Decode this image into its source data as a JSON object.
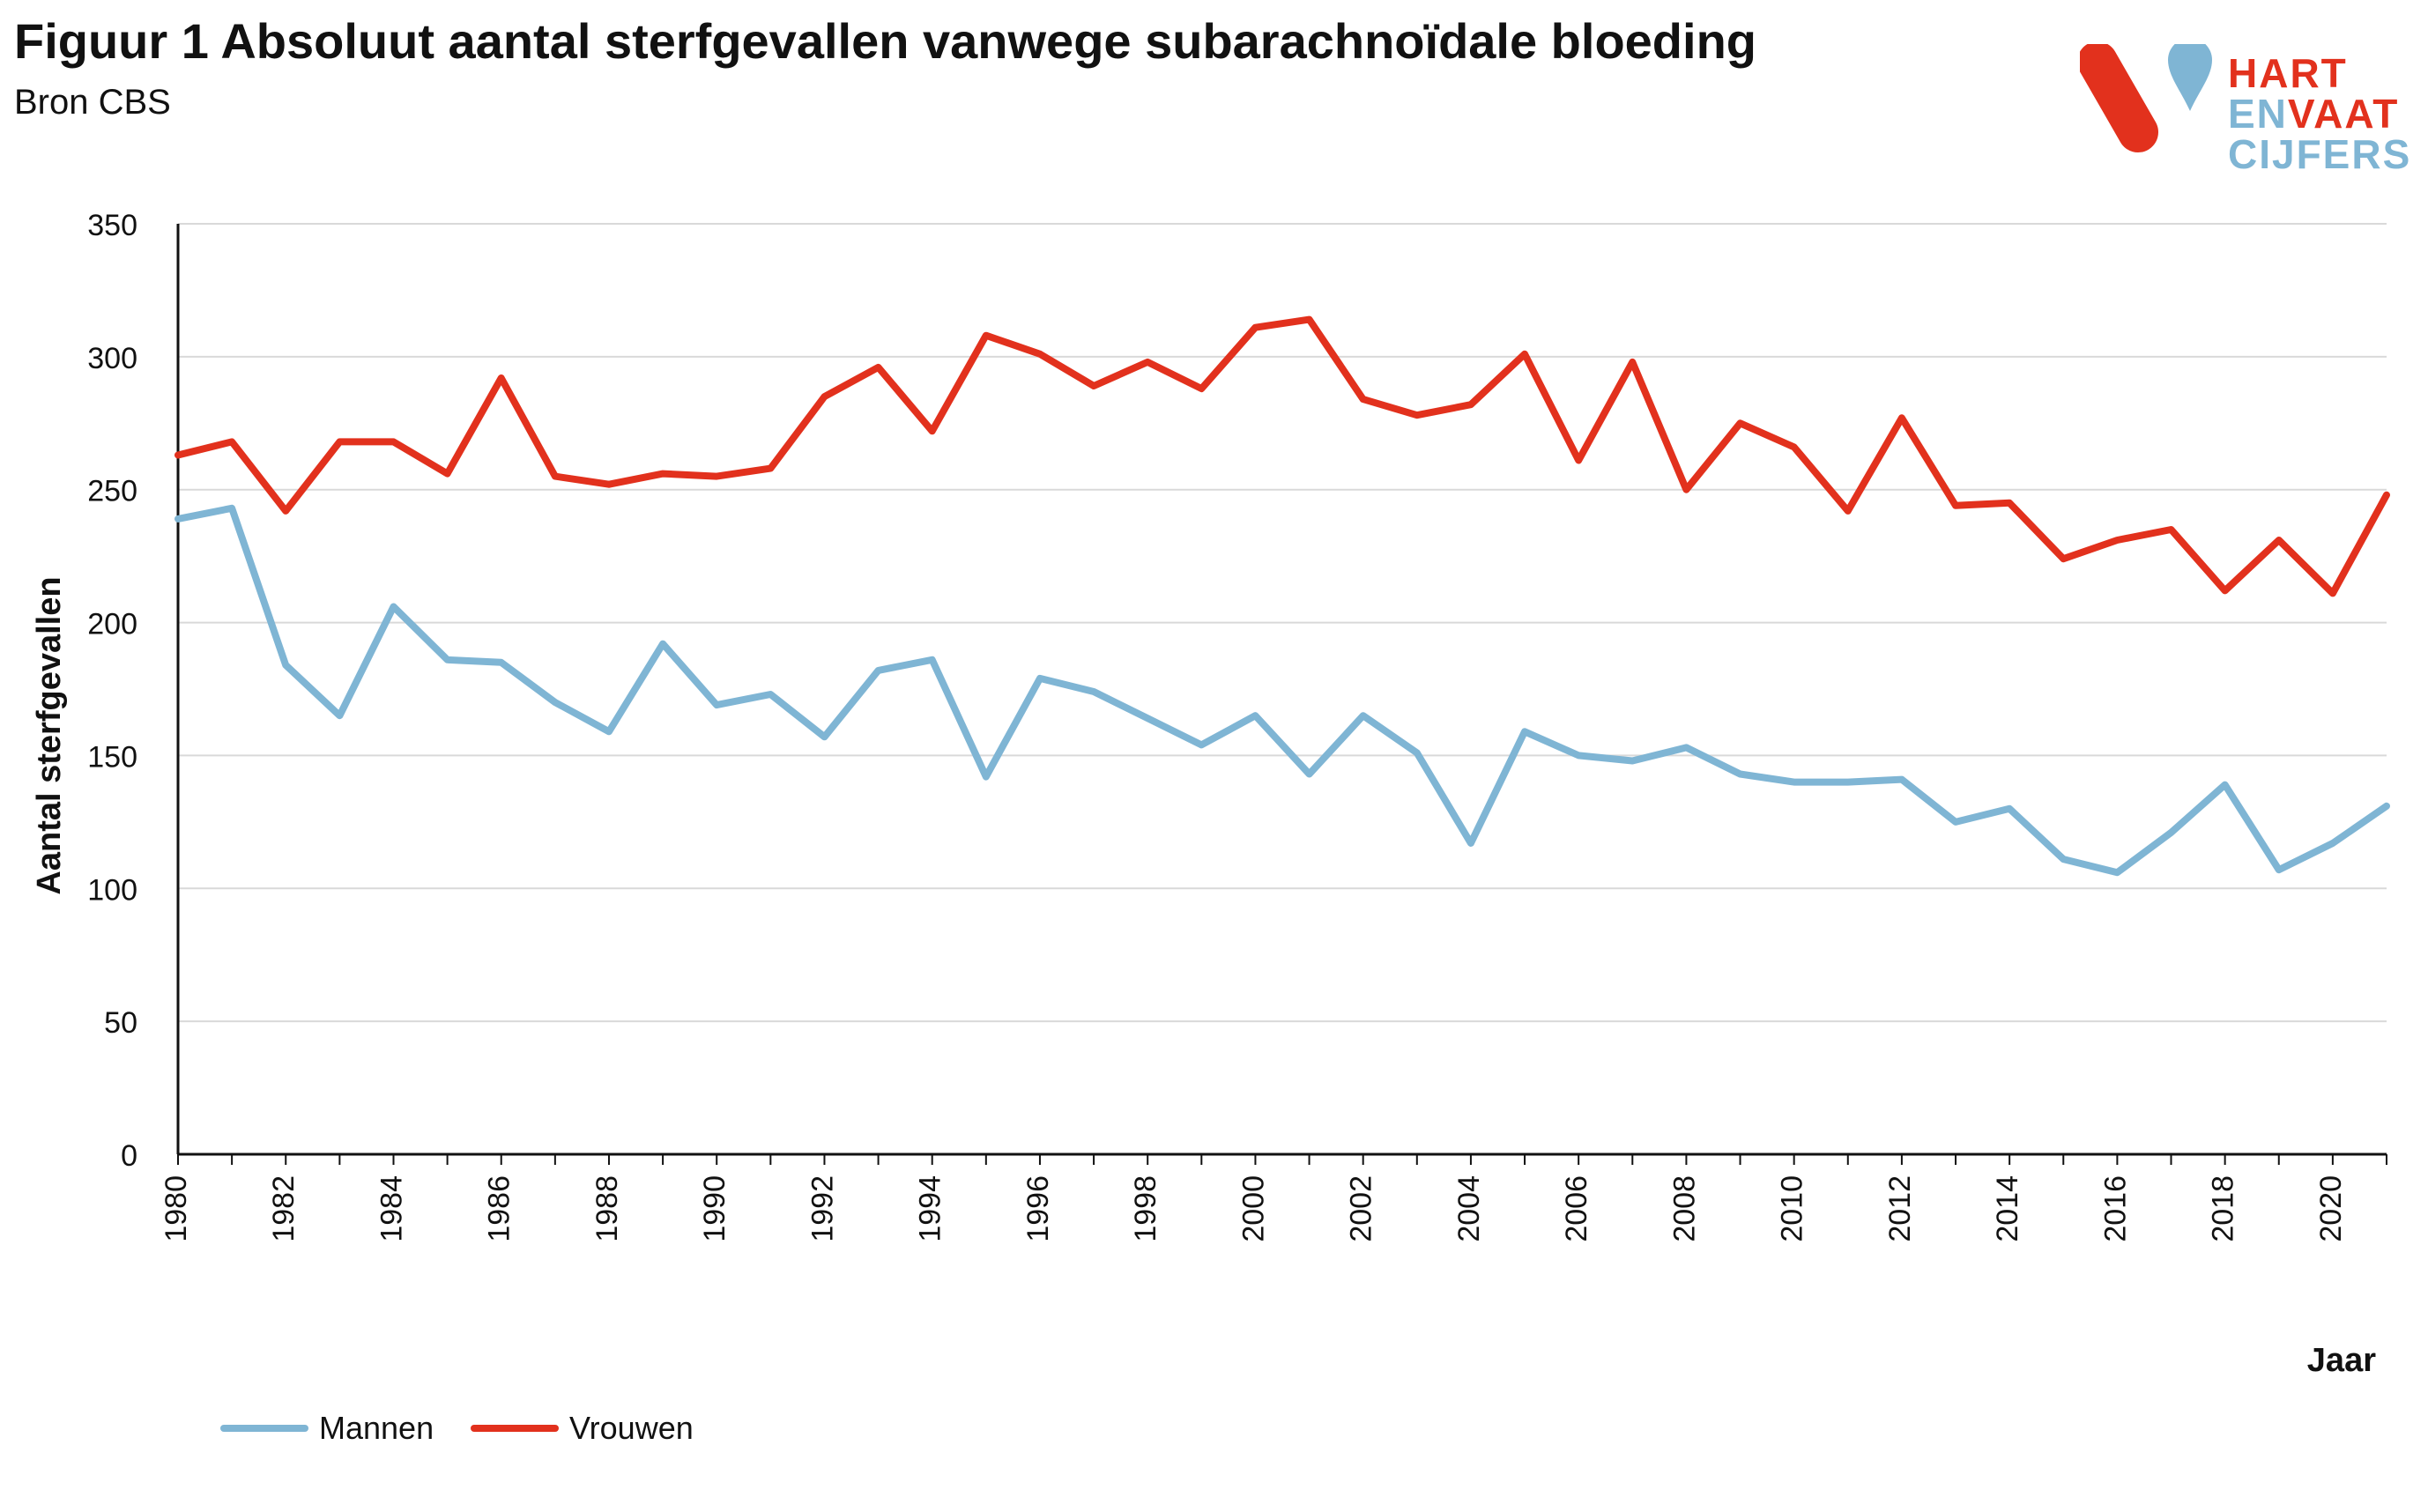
{
  "header": {
    "title": "Figuur 1 Absoluut aantal sterfgevallen vanwege subarachnoïdale bloeding",
    "subtitle": "Bron CBS"
  },
  "logo": {
    "line1a": "HART",
    "line2a": "EN",
    "line2b": "VAAT",
    "line3a": "CIJFERS",
    "red": "#e2311d",
    "blue": "#7fb5d4"
  },
  "chart_data": {
    "type": "line",
    "title": "Figuur 1 Absoluut aantal sterfgevallen vanwege subarachnoïdale bloeding",
    "xlabel": "Jaar",
    "ylabel": "Aantal sterfgevallen",
    "ylim": [
      0,
      350
    ],
    "yticks": [
      0,
      50,
      100,
      150,
      200,
      250,
      300,
      350
    ],
    "xtick_labels": [
      "1980",
      "1982",
      "1984",
      "1986",
      "1988",
      "1990",
      "1992",
      "1994",
      "1996",
      "1998",
      "2000",
      "2002",
      "2004",
      "2006",
      "2008",
      "2010",
      "2012",
      "2014",
      "2016",
      "2018",
      "2020"
    ],
    "x": [
      1980,
      1981,
      1982,
      1983,
      1984,
      1985,
      1986,
      1987,
      1988,
      1989,
      1990,
      1991,
      1992,
      1993,
      1994,
      1995,
      1996,
      1997,
      1998,
      1999,
      2000,
      2001,
      2002,
      2003,
      2004,
      2005,
      2006,
      2007,
      2008,
      2009,
      2010,
      2011,
      2012,
      2013,
      2014,
      2015,
      2016,
      2017,
      2018,
      2019,
      2020,
      2021
    ],
    "grid": true,
    "legend_position": "bottom-left",
    "series": [
      {
        "name": "Mannen",
        "color": "#7fb5d4",
        "values": [
          239,
          243,
          184,
          165,
          206,
          186,
          185,
          170,
          159,
          192,
          169,
          173,
          157,
          182,
          186,
          142,
          179,
          174,
          164,
          154,
          165,
          143,
          165,
          151,
          117,
          159,
          150,
          148,
          153,
          143,
          140,
          140,
          141,
          125,
          130,
          111,
          106,
          121,
          139,
          107,
          117,
          131
        ]
      },
      {
        "name": "Vrouwen",
        "color": "#e2311d",
        "values": [
          263,
          268,
          242,
          268,
          268,
          256,
          292,
          255,
          252,
          256,
          255,
          258,
          285,
          296,
          272,
          308,
          301,
          289,
          298,
          288,
          311,
          314,
          284,
          278,
          282,
          301,
          261,
          298,
          250,
          275,
          266,
          242,
          277,
          244,
          245,
          224,
          231,
          235,
          212,
          231,
          211,
          248
        ]
      }
    ]
  }
}
